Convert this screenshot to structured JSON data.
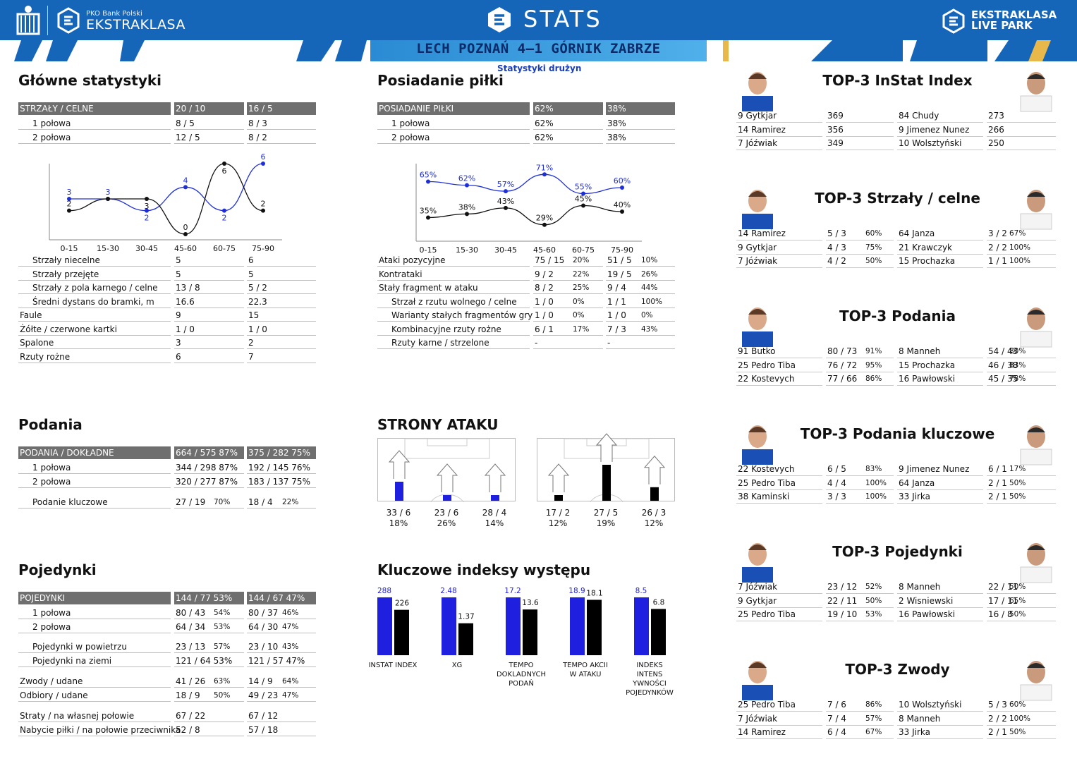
{
  "header": {
    "league_small": "PKO Bank Polski",
    "league_big": "EKSTRAKLASA",
    "title": "STATS",
    "livepark_line1": "EKSTRAKLASA",
    "livepark_line2": "LIVE PARK",
    "match": "LECH POZNAŃ 4–1 GÓRNIK ZABRZE",
    "subtitle": "Statystyki drużyn"
  },
  "glowne": {
    "title": "Główne statystyki",
    "header": [
      "STRZAŁY / CELNE",
      "20 / 10",
      "16 / 5"
    ],
    "rows": [
      [
        "1 połowa",
        "8 / 5",
        "8 / 3"
      ],
      [
        "2 połowa",
        "12 / 5",
        "8 / 2"
      ]
    ],
    "rows2": [
      [
        "Strzały niecelne",
        "5",
        "6"
      ],
      [
        "Strzały przejęte",
        "5",
        "5"
      ],
      [
        "Strzały z pola karnego / celne",
        "13 / 8",
        "5 / 2"
      ],
      [
        "Średni dystans do bramki, m",
        "16.6",
        "22.3"
      ],
      [
        "Faule",
        "9",
        "15"
      ],
      [
        "Żółte / czerwone kartki",
        "1 / 0",
        "1 / 0"
      ],
      [
        "Spalone",
        "3",
        "2"
      ],
      [
        "Rzuty rożne",
        "6",
        "7"
      ]
    ]
  },
  "posiadanie": {
    "title": "Posiadanie piłki",
    "header": [
      "POSIADANIE PIŁKI",
      "62%",
      "38%"
    ],
    "rows": [
      [
        "1 połowa",
        "62%",
        "38%"
      ],
      [
        "2 połowa",
        "62%",
        "38%"
      ]
    ],
    "rows2": [
      [
        "Ataki pozycyjne",
        "75 / 15",
        "20%",
        "51 / 5",
        "10%"
      ],
      [
        "Kontrataki",
        "9 / 2",
        "22%",
        "19 / 5",
        "26%"
      ],
      [
        "Stały fragment w ataku",
        "8 / 2",
        "25%",
        "9 / 4",
        "44%"
      ],
      [
        "Strzał z rzutu wolnego / celne",
        "1 / 0",
        "0%",
        "1 / 1",
        "100%"
      ],
      [
        "Warianty stałych fragmentów gry",
        "1 / 0",
        "0%",
        "1 / 0",
        "0%"
      ],
      [
        "Kombinacyjne rzuty rożne",
        "6 / 1",
        "17%",
        "7 / 3",
        "43%"
      ],
      [
        "Rzuty karne /  strzelone",
        "-",
        "",
        "-",
        ""
      ]
    ]
  },
  "chart_data": [
    {
      "type": "line",
      "categories": [
        "0-15",
        "15-30",
        "30-45",
        "45-60",
        "60-75",
        "75-90"
      ],
      "series": [
        {
          "values": [
            3,
            3,
            2,
            4,
            2,
            6
          ],
          "color": "#1f2fd6"
        },
        {
          "values": [
            2,
            3,
            3,
            0,
            6,
            2
          ],
          "color": "#111111"
        }
      ],
      "data_labels": [
        [
          "3",
          "3",
          "2",
          "4",
          "2",
          "6"
        ],
        [
          "2",
          "",
          "3",
          "0",
          "6",
          "2"
        ]
      ],
      "ylim": [
        0,
        6
      ]
    },
    {
      "type": "line",
      "categories": [
        "0-15",
        "15-30",
        "30-45",
        "45-60",
        "60-75",
        "75-90"
      ],
      "series": [
        {
          "values": [
            65,
            62,
            57,
            71,
            55,
            60
          ],
          "color": "#1f2fd6"
        },
        {
          "values": [
            35,
            38,
            43,
            29,
            45,
            40
          ],
          "color": "#111111"
        }
      ],
      "data_labels": [
        [
          "65%",
          "62%",
          "57%",
          "71%",
          "55%",
          "60%"
        ],
        [
          "35%",
          "38%",
          "43%",
          "29%",
          "45%",
          "40%"
        ]
      ],
      "ylim": [
        20,
        80
      ]
    },
    {
      "type": "bar",
      "categories": [
        "INSTAT INDEX",
        "XG",
        "TEMPO DOKLADNYCH PODAŃ",
        "TEMPO AKCII W ATAKU",
        "INDEKS INTENS YWNOŚCI POJEDYNKÓW"
      ],
      "series": [
        {
          "values": [
            288,
            2.48,
            17.2,
            18.9,
            8.5
          ],
          "labels": [
            "288",
            "2.48",
            "17.2",
            "18.9",
            "8.5"
          ],
          "color": "#1f1fe0"
        },
        {
          "values": [
            226,
            1.37,
            13.6,
            18.1,
            6.8
          ],
          "labels": [
            "226",
            "1.37",
            "13.6",
            "18.1",
            "6.8"
          ],
          "color": "#000000"
        }
      ]
    }
  ],
  "podania": {
    "title": "Podania",
    "header": [
      "PODANIA / DOKŁADNE",
      "664 / 575 87%",
      "375 / 282 75%"
    ],
    "rows": [
      [
        "1 połowa",
        "344 / 298 87%",
        "192 / 145 76%"
      ],
      [
        "2 połowa",
        "320 / 277 87%",
        "183 / 137 75%"
      ]
    ],
    "rows2": [
      [
        "Podanie kluczowe",
        "27 / 19",
        "70%",
        "18 / 4",
        "22%"
      ]
    ]
  },
  "pojedynki": {
    "title": "Pojedynki",
    "header": [
      "POJEDYNKI",
      "144 / 77 53%",
      "144 / 67 47%"
    ],
    "rows": [
      [
        "1 połowa",
        "80 / 43",
        "54%",
        "80 / 37",
        "46%"
      ],
      [
        "2 połowa",
        "64 / 34",
        "53%",
        "64 / 30",
        "47%"
      ]
    ],
    "rows2": [
      [
        "Pojedynki w powietrzu",
        "23 / 13",
        "57%",
        "23 / 10",
        "43%"
      ],
      [
        "Pojedynki na ziemi",
        "121 / 64 53%",
        "",
        "121 / 57 47%",
        ""
      ]
    ],
    "rows3": [
      [
        "Zwody / udane",
        "41 / 26",
        "63%",
        "14 / 9",
        "64%"
      ],
      [
        "Odbiory / udane",
        "18 / 9",
        "50%",
        "49 / 23",
        "47%"
      ]
    ],
    "rows4": [
      [
        "Straty / na własnej połowie",
        "67 / 22",
        "",
        "67 / 12",
        ""
      ],
      [
        "Nabycie piłki / na połowie przeciwnika",
        "52 / 8",
        "",
        "57 / 18",
        ""
      ]
    ]
  },
  "strony": {
    "title": "STRONY ATAKU",
    "home": [
      {
        "a": "33 / 6",
        "b": "18%",
        "fill": 0.45
      },
      {
        "a": "23 / 6",
        "b": "26%",
        "fill": 0.1
      },
      {
        "a": "28 / 4",
        "b": "14%",
        "fill": 0.1
      }
    ],
    "away": [
      {
        "a": "17 / 2",
        "b": "12%",
        "fill": 0.1
      },
      {
        "a": "27 / 5",
        "b": "19%",
        "fill": 0.85
      },
      {
        "a": "26 / 3",
        "b": "12%",
        "fill": 0.32
      }
    ]
  },
  "kluczowe": {
    "title": "Kluczowe indeksy występu"
  },
  "top3": [
    {
      "title": "TOP-3 InStat Index",
      "home": [
        [
          "9  Gytkjar",
          "369",
          ""
        ],
        [
          "14 Ramirez",
          "356",
          ""
        ],
        [
          "7  Jóźwiak",
          "349",
          ""
        ]
      ],
      "away": [
        [
          "84 Chudy",
          "273",
          ""
        ],
        [
          "9  Jimenez Nunez",
          "266",
          ""
        ],
        [
          "10 Wolsztyński",
          "250",
          ""
        ]
      ]
    },
    {
      "title": "TOP-3 Strzały / celne",
      "home": [
        [
          "14 Ramirez",
          "5 / 3",
          "60%"
        ],
        [
          "9  Gytkjar",
          "4 / 3",
          "75%"
        ],
        [
          "7  Jóźwiak",
          "4 / 2",
          "50%"
        ]
      ],
      "away": [
        [
          "64 Janza",
          "3 / 2",
          "67%"
        ],
        [
          "21 Krawczyk",
          "2 / 2",
          "100%"
        ],
        [
          "15 Prochazka",
          "1 / 1",
          "100%"
        ]
      ]
    },
    {
      "title": "TOP-3 Podania",
      "home": [
        [
          "91 Butko",
          "80 / 73",
          "91%"
        ],
        [
          "25 Pedro Tiba",
          "76 / 72",
          "95%"
        ],
        [
          "22 Kostevych",
          "77 / 66",
          "86%"
        ]
      ],
      "away": [
        [
          "8  Manneh",
          "54 / 43",
          "80%"
        ],
        [
          "15 Prochazka",
          "46 / 38",
          "83%"
        ],
        [
          "16 Pawłowski",
          "45 / 35",
          "78%"
        ]
      ]
    },
    {
      "title": "TOP-3 Podania kluczowe",
      "home": [
        [
          "22 Kostevych",
          "6 / 5",
          "83%"
        ],
        [
          "25 Pedro Tiba",
          "4 / 4",
          "100%"
        ],
        [
          "38 Kaminski",
          "3 / 3",
          "100%"
        ]
      ],
      "away": [
        [
          "9  Jimenez Nunez",
          "6 / 1",
          "17%"
        ],
        [
          "64 Janza",
          "2 / 1",
          "50%"
        ],
        [
          "33 Jirka",
          "2 / 1",
          "50%"
        ]
      ]
    },
    {
      "title": "TOP-3 Pojedynki",
      "home": [
        [
          "7  Jóźwiak",
          "23 / 12",
          "52%"
        ],
        [
          "9  Gytkjar",
          "22 / 11",
          "50%"
        ],
        [
          "25 Pedro Tiba",
          "19 / 10",
          "53%"
        ]
      ],
      "away": [
        [
          "8  Manneh",
          "22 / 11",
          "50%"
        ],
        [
          "2  Wisniewski",
          "17 / 11",
          "65%"
        ],
        [
          "16 Pawłowski",
          "16 / 8",
          "50%"
        ]
      ]
    },
    {
      "title": "TOP-3 Zwody",
      "home": [
        [
          "25 Pedro Tiba",
          "7 / 6",
          "86%"
        ],
        [
          "7  Jóźwiak",
          "7 / 4",
          "57%"
        ],
        [
          "14 Ramirez",
          "6 / 4",
          "67%"
        ]
      ],
      "away": [
        [
          "10 Wolsztyński",
          "5 / 3",
          "60%"
        ],
        [
          "8  Manneh",
          "2 / 2",
          "100%"
        ],
        [
          "33 Jirka",
          "2 / 1",
          "50%"
        ]
      ]
    }
  ]
}
